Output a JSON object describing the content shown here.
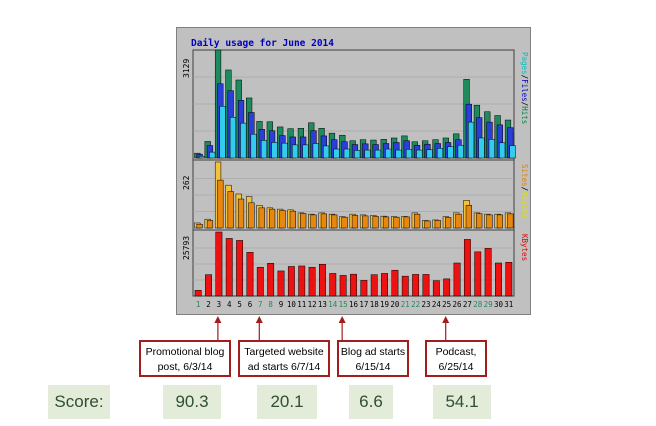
{
  "chart_data": {
    "type": "bar",
    "title": "Daily usage for June 2014",
    "categories": [
      "1",
      "2",
      "3",
      "4",
      "5",
      "6",
      "7",
      "8",
      "9",
      "10",
      "11",
      "12",
      "13",
      "14",
      "15",
      "16",
      "17",
      "18",
      "19",
      "20",
      "21",
      "22",
      "23",
      "24",
      "25",
      "26",
      "27",
      "28",
      "29",
      "30",
      "31"
    ],
    "weekend_days": [
      "1",
      "7",
      "8",
      "14",
      "15",
      "21",
      "22",
      "28",
      "29"
    ],
    "panels": [
      {
        "name": "hits",
        "max_label": "3129",
        "max": 3129,
        "side_label_parts": [
          "Pages",
          "/",
          "Files",
          "/",
          "Hits"
        ],
        "side_label_colors": [
          "#00c0c0",
          "#000000",
          "#0000c0",
          "#000000",
          "#008040"
        ],
        "series": [
          {
            "name": "Hits",
            "color": "#1e8a5e",
            "values": [
              140,
              480,
              3129,
              2550,
              2260,
              1740,
              1060,
              1050,
              900,
              850,
              860,
              1020,
              860,
              720,
              660,
              500,
              530,
              520,
              540,
              580,
              640,
              470,
              500,
              530,
              580,
              700,
              2280,
              1530,
              1340,
              1230,
              1100
            ]
          },
          {
            "name": "Files",
            "color": "#2a3fd8",
            "values": [
              110,
              360,
              2150,
              1950,
              1670,
              1320,
              830,
              790,
              650,
              610,
              610,
              790,
              640,
              530,
              470,
              390,
              410,
              390,
              420,
              450,
              500,
              370,
              400,
              420,
              450,
              530,
              1560,
              1170,
              1040,
              960,
              880
            ]
          },
          {
            "name": "Pages",
            "color": "#33ccee",
            "values": [
              50,
              170,
              1500,
              1180,
              1010,
              690,
              510,
              450,
              430,
              380,
              380,
              420,
              350,
              260,
              260,
              220,
              230,
              230,
              260,
              230,
              250,
              230,
              240,
              280,
              330,
              370,
              1040,
              580,
              540,
              440,
              360
            ]
          }
        ]
      },
      {
        "name": "visits",
        "max_label": "262",
        "max": 262,
        "side_label_parts": [
          "Sites",
          "/",
          "Visits"
        ],
        "side_label_colors": [
          "#e08000",
          "#000000",
          "#e0e000"
        ],
        "series": [
          {
            "name": "Visits",
            "color": "#f2c23a",
            "values": [
              20,
              35,
              262,
              170,
              135,
              125,
              90,
              80,
              75,
              72,
              60,
              55,
              60,
              55,
              45,
              55,
              52,
              50,
              47,
              45,
              46,
              60,
              30,
              32,
              45,
              60,
              110,
              60,
              55,
              55,
              60
            ]
          },
          {
            "name": "Sites",
            "color": "#e8870f",
            "values": [
              15,
              30,
              190,
              145,
              115,
              100,
              80,
              75,
              70,
              67,
              58,
              52,
              56,
              52,
              43,
              50,
              48,
              46,
              44,
              43,
              44,
              55,
              28,
              30,
              42,
              55,
              90,
              57,
              52,
              52,
              56
            ]
          }
        ]
      },
      {
        "name": "kbytes",
        "max_label": "25793",
        "max": 25793,
        "side_label_parts": [
          "KBytes"
        ],
        "side_label_colors": [
          "#e00000"
        ],
        "series": [
          {
            "name": "KBytes",
            "color": "#ee1111",
            "values": [
              2300,
              8600,
              25793,
              23200,
              22400,
              17600,
              11600,
              13200,
              10100,
              11900,
              12100,
              11600,
              12800,
              9100,
              8300,
              8800,
              6300,
              8600,
              9100,
              10400,
              8000,
              8700,
              8700,
              6200,
              6900,
              13300,
              22800,
              17800,
              19200,
              13300,
              13600
            ]
          }
        ]
      }
    ]
  },
  "annotations": [
    {
      "day": "3",
      "label": "Promotional blog post, 6/3/14"
    },
    {
      "day": "7",
      "label": "Targeted website ad starts 6/7/14"
    },
    {
      "day": "15",
      "label": "Blog ad starts 6/15/14"
    },
    {
      "day": "25",
      "label": "Podcast, 6/25/14"
    }
  ],
  "scores": {
    "label": "Score:",
    "values": [
      "90.3",
      "20.1",
      "6.6",
      "54.1"
    ]
  },
  "colors": {
    "plot_background": "#c0c0c0",
    "callout_border": "#a21d1d",
    "score_background": "#e3ecd9",
    "title_color": "#0000c0"
  }
}
